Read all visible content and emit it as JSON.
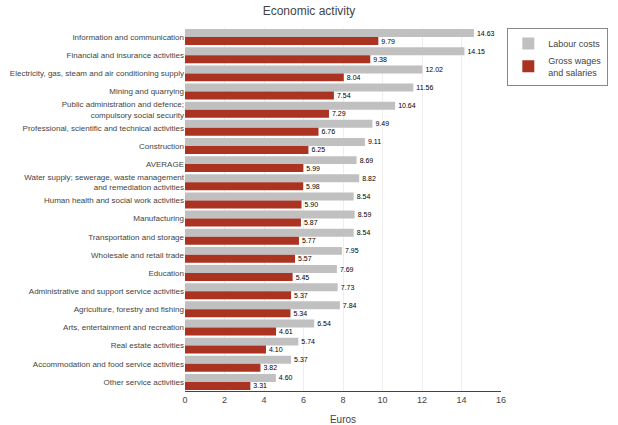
{
  "chart_data": {
    "type": "bar",
    "orientation": "horizontal",
    "title": "Economic activity",
    "xlabel": "Euros",
    "categories": [
      "Information and communication",
      "Financial and insurance activities",
      "Electricity, gas, steam and air conditioning supply",
      "Mining and quarrying",
      "Public administration and defence;\ncompulsory social security",
      "Professional, scientific and technical activities",
      "Construction",
      "AVERAGE",
      "Water supply; sewerage, waste management\nand remediation activities",
      "Human health and social work activities",
      "Manufacturing",
      "Transportation and storage",
      "Wholesale and retail trade",
      "Education",
      "Administrative and support service activities",
      "Agriculture, forestry and fishing",
      "Arts, entertainment and recreation",
      "Real estate activities",
      "Accommodation and food service activities",
      "Other service activities"
    ],
    "series": [
      {
        "name": "Labour costs",
        "color": "#c0c0c0",
        "values": [
          14.63,
          14.15,
          12.02,
          11.56,
          10.64,
          9.49,
          9.11,
          8.69,
          8.82,
          8.54,
          8.59,
          8.54,
          7.95,
          7.69,
          7.73,
          7.84,
          6.54,
          5.74,
          5.37,
          4.6
        ],
        "value_labels": [
          "14.63",
          "14.15",
          "12.02",
          "11.56",
          "10.64",
          "9.49",
          "9.11",
          "8.69",
          "8.82",
          "8.54",
          "8.59",
          "8.54",
          "7.95",
          "7.69",
          "7.73",
          "7.84",
          "6.54",
          "5.74",
          "5.37",
          "4.60"
        ]
      },
      {
        "name": "Gross wages\nand salaries",
        "color": "#aa3322",
        "values": [
          9.79,
          9.38,
          8.04,
          7.54,
          7.29,
          6.76,
          6.25,
          5.99,
          5.98,
          5.9,
          5.87,
          5.77,
          5.57,
          5.45,
          5.37,
          5.34,
          4.61,
          4.1,
          3.82,
          3.31
        ],
        "value_labels": [
          "9.79",
          "9.38",
          "8.04",
          "7.54",
          "7.29",
          "6.76",
          "6.25",
          "5.99",
          "5.98",
          "5.90",
          "5.87",
          "5.77",
          "5.57",
          "5.45",
          "5.37",
          "5.34",
          "4.61",
          "4.10",
          "3.82",
          "3.31"
        ]
      }
    ],
    "xlim": [
      0,
      16
    ],
    "xticks": [
      0,
      2,
      4,
      6,
      8,
      10,
      12,
      14,
      16
    ],
    "grid": true,
    "legend": "right",
    "data_labels": true
  }
}
